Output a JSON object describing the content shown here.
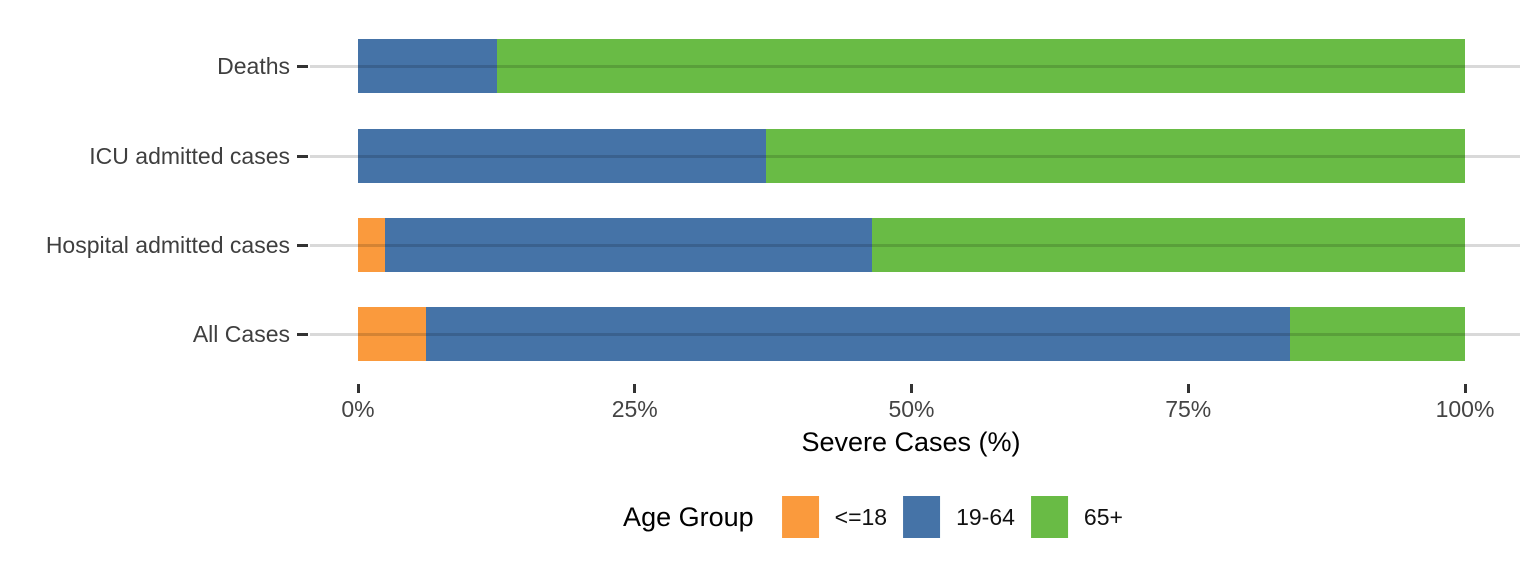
{
  "chart_data": {
    "type": "bar",
    "orientation": "horizontal",
    "stacked": true,
    "stack_total_percent": 100,
    "categories": [
      "Deaths",
      "ICU admitted cases",
      "Hospital admitted cases",
      "All Cases"
    ],
    "series": [
      {
        "name": "<=18",
        "color": "#FA9A3D",
        "values": [
          0.0,
          0.0,
          2.4,
          6.1
        ]
      },
      {
        "name": "19-64",
        "color": "#4573A7",
        "values": [
          12.6,
          36.9,
          44.0,
          78.1
        ]
      },
      {
        "name": "65+",
        "color": "#69BB45",
        "values": [
          87.4,
          63.1,
          53.6,
          15.8
        ]
      }
    ],
    "xlabel": "Severe Cases (%)",
    "x_ticks": [
      "0%",
      "25%",
      "50%",
      "75%",
      "100%"
    ],
    "x_tick_values": [
      0,
      25,
      50,
      75,
      100
    ],
    "xlim": [
      0,
      100
    ],
    "legend_title": "Age Group",
    "legend_position": "bottom",
    "grid": "horizontal category gridlines, light gray",
    "background_color": "#ffffff",
    "gridline_color": "#d6d6d6",
    "tick_color": "#333333",
    "label_color": "#3f3f3f"
  }
}
